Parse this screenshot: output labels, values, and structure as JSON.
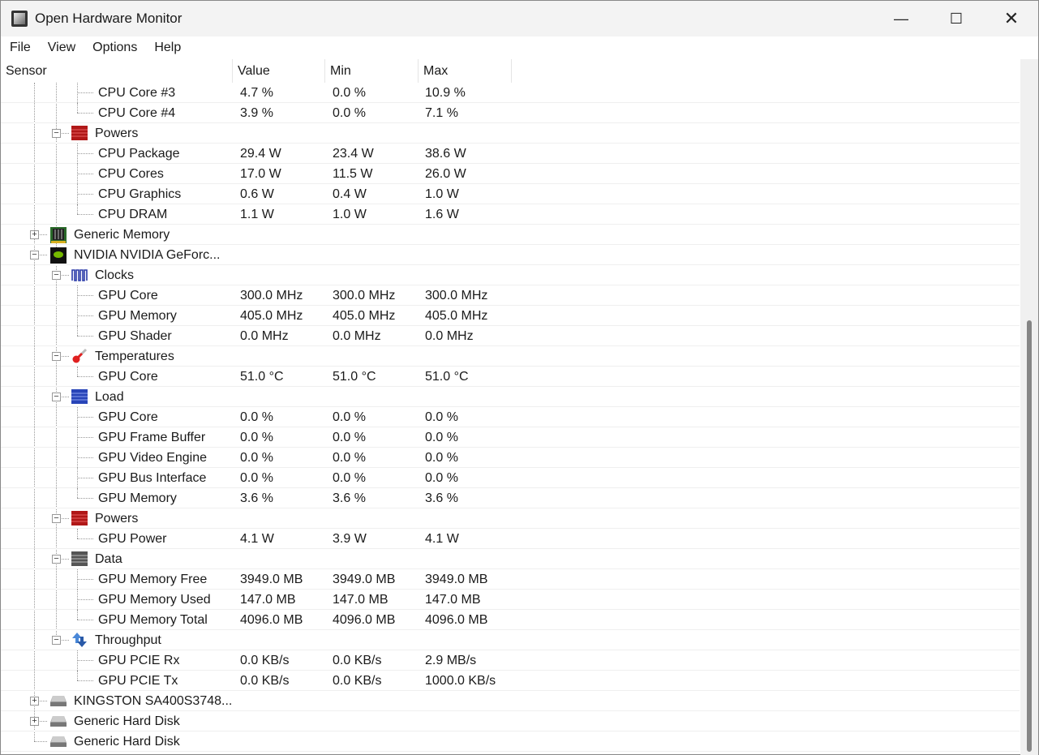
{
  "window": {
    "title": "Open Hardware Monitor"
  },
  "menu": [
    "File",
    "View",
    "Options",
    "Help"
  ],
  "columns": [
    "Sensor",
    "Value",
    "Min",
    "Max"
  ],
  "scroll": {
    "position_fraction": 0.55,
    "visible_fraction": 0.62
  },
  "rows": [
    {
      "level": 2,
      "label": "CPU Core #3",
      "value": "4.7 %",
      "min": "0.0 %",
      "max": "10.9 %"
    },
    {
      "level": 2,
      "label": "CPU Core #4",
      "value": "3.9 %",
      "min": "0.0 %",
      "max": "7.1 %",
      "last": true
    },
    {
      "level": 1,
      "label": "Powers",
      "icon": "power-icon",
      "toggle": "-"
    },
    {
      "level": 2,
      "label": "CPU Package",
      "value": "29.4 W",
      "min": "23.4 W",
      "max": "38.6 W"
    },
    {
      "level": 2,
      "label": "CPU Cores",
      "value": "17.0 W",
      "min": "11.5 W",
      "max": "26.0 W"
    },
    {
      "level": 2,
      "label": "CPU Graphics",
      "value": "0.6 W",
      "min": "0.4 W",
      "max": "1.0 W"
    },
    {
      "level": 2,
      "label": "CPU DRAM",
      "value": "1.1 W",
      "min": "1.0 W",
      "max": "1.6 W",
      "last": true
    },
    {
      "level": 0,
      "label": "Generic Memory",
      "icon": "memory-icon",
      "toggle": "+"
    },
    {
      "level": 0,
      "label": "NVIDIA NVIDIA GeForc...",
      "icon": "gpu-icon",
      "toggle": "-"
    },
    {
      "level": 1,
      "label": "Clocks",
      "icon": "clock-icon",
      "toggle": "-"
    },
    {
      "level": 2,
      "label": "GPU Core",
      "value": "300.0 MHz",
      "min": "300.0 MHz",
      "max": "300.0 MHz"
    },
    {
      "level": 2,
      "label": "GPU Memory",
      "value": "405.0 MHz",
      "min": "405.0 MHz",
      "max": "405.0 MHz"
    },
    {
      "level": 2,
      "label": "GPU Shader",
      "value": "0.0 MHz",
      "min": "0.0 MHz",
      "max": "0.0 MHz",
      "last": true
    },
    {
      "level": 1,
      "label": "Temperatures",
      "icon": "thermometer-icon",
      "toggle": "-"
    },
    {
      "level": 2,
      "label": "GPU Core",
      "value": "51.0 °C",
      "min": "51.0 °C",
      "max": "51.0 °C",
      "last": true
    },
    {
      "level": 1,
      "label": "Load",
      "icon": "load-icon",
      "toggle": "-"
    },
    {
      "level": 2,
      "label": "GPU Core",
      "value": "0.0 %",
      "min": "0.0 %",
      "max": "0.0 %"
    },
    {
      "level": 2,
      "label": "GPU Frame Buffer",
      "value": "0.0 %",
      "min": "0.0 %",
      "max": "0.0 %"
    },
    {
      "level": 2,
      "label": "GPU Video Engine",
      "value": "0.0 %",
      "min": "0.0 %",
      "max": "0.0 %"
    },
    {
      "level": 2,
      "label": "GPU Bus Interface",
      "value": "0.0 %",
      "min": "0.0 %",
      "max": "0.0 %"
    },
    {
      "level": 2,
      "label": "GPU Memory",
      "value": "3.6 %",
      "min": "3.6 %",
      "max": "3.6 %",
      "last": true
    },
    {
      "level": 1,
      "label": "Powers",
      "icon": "power-icon",
      "toggle": "-"
    },
    {
      "level": 2,
      "label": "GPU Power",
      "value": "4.1 W",
      "min": "3.9 W",
      "max": "4.1 W",
      "last": true
    },
    {
      "level": 1,
      "label": "Data",
      "icon": "data-icon",
      "toggle": "-"
    },
    {
      "level": 2,
      "label": "GPU Memory Free",
      "value": "3949.0 MB",
      "min": "3949.0 MB",
      "max": "3949.0 MB"
    },
    {
      "level": 2,
      "label": "GPU Memory Used",
      "value": "147.0 MB",
      "min": "147.0 MB",
      "max": "147.0 MB"
    },
    {
      "level": 2,
      "label": "GPU Memory Total",
      "value": "4096.0 MB",
      "min": "4096.0 MB",
      "max": "4096.0 MB",
      "last": true
    },
    {
      "level": 1,
      "label": "Throughput",
      "icon": "throughput-icon",
      "toggle": "-",
      "lastGroup": true
    },
    {
      "level": 2,
      "label": "GPU PCIE Rx",
      "value": "0.0 KB/s",
      "min": "0.0 KB/s",
      "max": "2.9 MB/s"
    },
    {
      "level": 2,
      "label": "GPU PCIE Tx",
      "value": "0.0 KB/s",
      "min": "0.0 KB/s",
      "max": "1000.0 KB/s",
      "last": true
    },
    {
      "level": 0,
      "label": "KINGSTON SA400S3748...",
      "icon": "disk-icon",
      "toggle": "+"
    },
    {
      "level": 0,
      "label": "Generic Hard Disk",
      "icon": "disk-icon",
      "toggle": "+"
    },
    {
      "level": 0,
      "label": "Generic Hard Disk",
      "icon": "disk-icon",
      "last": true
    }
  ]
}
